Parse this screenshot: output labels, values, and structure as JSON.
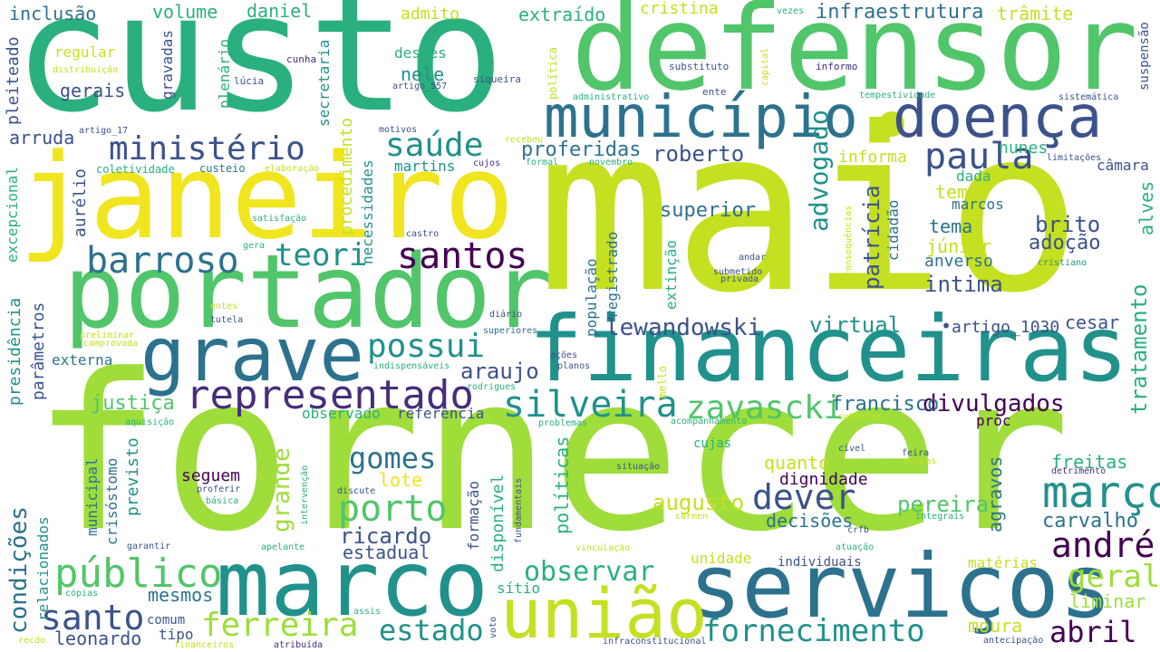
{
  "palette": {
    "light_green": "#9edd3a",
    "lime": "#c5e021",
    "yellow": "#f0e51f",
    "green": "#51c56a",
    "teal_green": "#2ab07f",
    "teal": "#21918c",
    "steel_blue": "#2c728e",
    "indigo": "#3b528b",
    "violet": "#472d7b",
    "dark_purple": "#440154"
  },
  "words": [
    {
      "text": "fornecer",
      "color": "#9edd3a"
    },
    {
      "text": "maio",
      "color": "#c5e021"
    },
    {
      "text": "custo",
      "color": "#2ab07f"
    },
    {
      "text": "defensor",
      "color": "#51c56a"
    },
    {
      "text": "janeiro",
      "color": "#f0e51f"
    },
    {
      "text": "portador",
      "color": "#51c56a"
    },
    {
      "text": "financeiras",
      "color": "#21918c"
    },
    {
      "text": "marco",
      "color": "#21918c"
    },
    {
      "text": "serviços",
      "color": "#2c728e"
    },
    {
      "text": "município",
      "color": "#2c728e"
    },
    {
      "text": "doença",
      "color": "#3b528b"
    },
    {
      "text": "grave",
      "color": "#2c728e"
    },
    {
      "text": "união",
      "color": "#c5e021"
    },
    {
      "text": "representado",
      "color": "#472d7b"
    },
    {
      "text": "público",
      "color": "#51c56a"
    },
    {
      "text": "ministério",
      "color": "#3b528b"
    },
    {
      "text": "barroso",
      "color": "#2c728e"
    },
    {
      "text": "saúde",
      "color": "#21918c"
    },
    {
      "text": "paula",
      "color": "#3b528b"
    },
    {
      "text": "março",
      "color": "#21918c"
    },
    {
      "text": "fornecimento",
      "color": "#21918c"
    },
    {
      "text": "ferreira",
      "color": "#9edd3a"
    },
    {
      "text": "silveira",
      "color": "#21918c"
    },
    {
      "text": "zavascki",
      "color": "#51c56a"
    },
    {
      "text": "santos",
      "color": "#440154"
    },
    {
      "text": "possui",
      "color": "#21918c"
    },
    {
      "text": "dever",
      "color": "#3b528b"
    },
    {
      "text": "andré",
      "color": "#440154"
    },
    {
      "text": "santo",
      "color": "#3b528b"
    },
    {
      "text": "porto",
      "color": "#51c56a"
    },
    {
      "text": "teori",
      "color": "#21918c"
    },
    {
      "text": "estado",
      "color": "#21918c"
    },
    {
      "text": "abril",
      "color": "#440154"
    },
    {
      "text": "observar",
      "color": "#2ab07f"
    },
    {
      "text": "geral",
      "color": "#9edd3a"
    },
    {
      "text": "gomes",
      "color": "#2c728e"
    },
    {
      "text": "divulgados",
      "color": "#440154"
    },
    {
      "text": "lewandowski",
      "color": "#3b528b"
    },
    {
      "text": "justiça",
      "color": "#51c56a"
    },
    {
      "text": "francisco",
      "color": "#2c728e"
    },
    {
      "text": "araujo",
      "color": "#3b528b"
    },
    {
      "text": "roberto",
      "color": "#3b528b"
    },
    {
      "text": "proferidas",
      "color": "#2c728e"
    },
    {
      "text": "infraestrutura",
      "color": "#2c728e"
    },
    {
      "text": "augusto",
      "color": "#c5e021"
    },
    {
      "text": "ricardo",
      "color": "#3b528b"
    },
    {
      "text": "pereira",
      "color": "#51c56a"
    },
    {
      "text": "carvalho",
      "color": "#2c728e"
    },
    {
      "text": "intima",
      "color": "#3b528b"
    },
    {
      "text": "superior",
      "color": "#2c728e"
    },
    {
      "text": "virtual",
      "color": "#21918c"
    },
    {
      "text": "adoção",
      "color": "#3b528b"
    },
    {
      "text": "brito",
      "color": "#3b528b"
    },
    {
      "text": "leonardo",
      "color": "#3b528b"
    },
    {
      "text": "moura",
      "color": "#c5e021"
    },
    {
      "text": "liminar",
      "color": "#9edd3a"
    },
    {
      "text": "freitas",
      "color": "#2ab07f"
    },
    {
      "text": "decisões",
      "color": "#2c728e"
    },
    {
      "text": "dignidade",
      "color": "#440154"
    },
    {
      "text": "quanto",
      "color": "#c5e021"
    },
    {
      "text": "mesmos",
      "color": "#2c728e"
    },
    {
      "text": "estadual",
      "color": "#3b528b"
    },
    {
      "text": "seguem",
      "color": "#440154"
    },
    {
      "text": "lote",
      "color": "#f0e51f"
    },
    {
      "text": "inclusão",
      "color": "#2c728e"
    },
    {
      "text": "volume",
      "color": "#2ab07f"
    },
    {
      "text": "daniel",
      "color": "#2ab07f"
    },
    {
      "text": "admito",
      "color": "#c5e021"
    },
    {
      "text": "extraído",
      "color": "#2ab07f"
    },
    {
      "text": "cristina",
      "color": "#c5e021"
    },
    {
      "text": "trâmite",
      "color": "#c5e021"
    },
    {
      "text": "gerais",
      "color": "#3b528b"
    },
    {
      "text": "nele",
      "color": "#21918c"
    },
    {
      "text": "destes",
      "color": "#2ab07f"
    },
    {
      "text": "regular",
      "color": "#c5e021"
    },
    {
      "text": "arruda",
      "color": "#3b528b"
    },
    {
      "text": "martins",
      "color": "#21918c"
    },
    {
      "text": "temas",
      "color": "#c5e021"
    },
    {
      "text": "marcos",
      "color": "#2c728e"
    },
    {
      "text": "tema",
      "color": "#2c728e"
    },
    {
      "text": "júnior",
      "color": "#c5e021"
    },
    {
      "text": "anverso",
      "color": "#2c728e"
    },
    {
      "text": "nunes",
      "color": "#2ab07f"
    },
    {
      "text": "dada",
      "color": "#2ab07f"
    },
    {
      "text": "câmara",
      "color": "#3b528b"
    },
    {
      "text": "informa",
      "color": "#c5e021"
    },
    {
      "text": "cesar",
      "color": "#3b528b"
    },
    {
      "text": "externa",
      "color": "#2c728e"
    },
    {
      "text": "referência",
      "color": "#3b528b"
    },
    {
      "text": "observado",
      "color": "#2ab07f"
    },
    {
      "text": "proc",
      "color": "#440154"
    },
    {
      "text": "cujas",
      "color": "#2ab07f"
    },
    {
      "text": "unidade",
      "color": "#c5e021"
    },
    {
      "text": "individuais",
      "color": "#3b528b"
    },
    {
      "text": "matérias",
      "color": "#c5e021"
    },
    {
      "text": "comum",
      "color": "#3b528b"
    },
    {
      "text": "tipo",
      "color": "#3b528b"
    },
    {
      "text": "sítio",
      "color": "#2ab07f"
    },
    {
      "text": "artigo_1030",
      "color": "#3b528b"
    },
    {
      "text": "cunha",
      "color": "#472d7b"
    },
    {
      "text": "lúcia",
      "color": "#3b528b"
    },
    {
      "text": "artigo_557",
      "color": "#3b528b"
    },
    {
      "text": "siqueira",
      "color": "#3b528b"
    },
    {
      "text": "substituto",
      "color": "#3b528b"
    },
    {
      "text": "informo",
      "color": "#472d7b"
    },
    {
      "text": "vezes",
      "color": "#2ab07f"
    },
    {
      "text": "ente",
      "color": "#3b528b"
    },
    {
      "text": "administrativo",
      "color": "#2ab07f"
    },
    {
      "text": "tempestividade",
      "color": "#2ab07f"
    },
    {
      "text": "sistemática",
      "color": "#3b528b"
    },
    {
      "text": "motivos",
      "color": "#3b528b"
    },
    {
      "text": "recebeu",
      "color": "#c5e021"
    },
    {
      "text": "artigo_17",
      "color": "#3b528b"
    },
    {
      "text": "distribuição",
      "color": "#c5e021"
    },
    {
      "text": "coletividade",
      "color": "#2ab07f"
    },
    {
      "text": "custeio",
      "color": "#2c728e"
    },
    {
      "text": "elaboração",
      "color": "#c5e021"
    },
    {
      "text": "cujos",
      "color": "#472d7b"
    },
    {
      "text": "formal",
      "color": "#2ab07f"
    },
    {
      "text": "novembro",
      "color": "#2ab07f"
    },
    {
      "text": "limitações",
      "color": "#3b528b"
    },
    {
      "text": "satisfação",
      "color": "#2ab07f"
    },
    {
      "text": "castro",
      "color": "#3b528b"
    },
    {
      "text": "gera",
      "color": "#2ab07f"
    },
    {
      "text": "andar",
      "color": "#3b528b"
    },
    {
      "text": "submetido",
      "color": "#3b528b"
    },
    {
      "text": "privada",
      "color": "#3b528b"
    },
    {
      "text": "cristiano",
      "color": "#21918c"
    },
    {
      "text": "entes",
      "color": "#c5e021"
    },
    {
      "text": "tutela",
      "color": "#3b528b"
    },
    {
      "text": "diário",
      "color": "#3b528b"
    },
    {
      "text": "superiores",
      "color": "#2c728e"
    },
    {
      "text": "preliminar",
      "color": "#c5e021"
    },
    {
      "text": "comprovada",
      "color": "#c5e021"
    },
    {
      "text": "ações",
      "color": "#3b528b"
    },
    {
      "text": "planos",
      "color": "#3b528b"
    },
    {
      "text": "indispensáveis",
      "color": "#2ab07f"
    },
    {
      "text": "rodrigues",
      "color": "#2ab07f"
    },
    {
      "text": "aquisição",
      "color": "#2ab07f"
    },
    {
      "text": "problemas",
      "color": "#2ab07f"
    },
    {
      "text": "acompanhamento",
      "color": "#2ab07f"
    },
    {
      "text": "submeter",
      "color": "#c5e021"
    },
    {
      "text": "civel",
      "color": "#3b528b"
    },
    {
      "text": "feira",
      "color": "#3b528b"
    },
    {
      "text": "outras",
      "color": "#c5e021"
    },
    {
      "text": "situação",
      "color": "#3b528b"
    },
    {
      "text": "detrimento",
      "color": "#472d7b"
    },
    {
      "text": "proferir",
      "color": "#3b528b"
    },
    {
      "text": "básica",
      "color": "#2ab07f"
    },
    {
      "text": "discute",
      "color": "#3b528b"
    },
    {
      "text": "integrais",
      "color": "#2ab07f"
    },
    {
      "text": "carmen",
      "color": "#c5e021"
    },
    {
      "text": "crfb",
      "color": "#3b528b"
    },
    {
      "text": "garantir",
      "color": "#3b528b"
    },
    {
      "text": "apelante",
      "color": "#2ab07f"
    },
    {
      "text": "vinculação",
      "color": "#c5e021"
    },
    {
      "text": "atuação",
      "color": "#2ab07f"
    },
    {
      "text": "cópias",
      "color": "#2ab07f"
    },
    {
      "text": "assis",
      "color": "#2ab07f"
    },
    {
      "text": "voto",
      "color": "#3b528b"
    },
    {
      "text": "recdo",
      "color": "#c5e021"
    },
    {
      "text": "financeiros",
      "color": "#c5e021"
    },
    {
      "text": "atribuída",
      "color": "#472d7b"
    },
    {
      "text": "infraconstitucional",
      "color": "#3b528b"
    },
    {
      "text": "antecipação",
      "color": "#3b528b"
    },
    {
      "text": "pleiteado",
      "color": "#3b528b"
    },
    {
      "text": "excepcional",
      "color": "#2ab07f"
    },
    {
      "text": "presidência",
      "color": "#21918c"
    },
    {
      "text": "parâmetros",
      "color": "#3b528b"
    },
    {
      "text": "condições",
      "color": "#2c728e"
    },
    {
      "text": "relacionados",
      "color": "#21918c"
    },
    {
      "text": "gravadas",
      "color": "#3b528b"
    },
    {
      "text": "plenário",
      "color": "#2ab07f"
    },
    {
      "text": "secretaria",
      "color": "#21918c"
    },
    {
      "text": "procedimento",
      "color": "#c5e021"
    },
    {
      "text": "necessidades",
      "color": "#21918c"
    },
    {
      "text": "aurélio",
      "color": "#3b528b"
    },
    {
      "text": "grande",
      "color": "#9edd3a"
    },
    {
      "text": "previsto",
      "color": "#21918c"
    },
    {
      "text": "crisóstomo",
      "color": "#2c728e"
    },
    {
      "text": "municipal",
      "color": "#2c728e"
    },
    {
      "text": "advogado",
      "color": "#21918c"
    },
    {
      "text": "patrícia",
      "color": "#3b528b"
    },
    {
      "text": "cidadão",
      "color": "#2c728e"
    },
    {
      "text": "tratamento",
      "color": "#2ab07f"
    },
    {
      "text": "alves",
      "color": "#2ab07f"
    },
    {
      "text": "agravos",
      "color": "#2c728e"
    },
    {
      "text": "população",
      "color": "#2c728e"
    },
    {
      "text": "registrado",
      "color": "#2c728e"
    },
    {
      "text": "extinção",
      "color": "#2ab07f"
    },
    {
      "text": "formação",
      "color": "#3b528b"
    },
    {
      "text": "disponível",
      "color": "#2ab07f"
    },
    {
      "text": "políticas",
      "color": "#2ab07f"
    },
    {
      "text": "suspensão",
      "color": "#3b528b"
    },
    {
      "text": "política",
      "color": "#c5e021"
    },
    {
      "text": "capital",
      "color": "#c5e021"
    },
    {
      "text": "consequências",
      "color": "#c5e021"
    },
    {
      "text": "mello",
      "color": "#c5e021"
    },
    {
      "text": "intervenção",
      "color": "#2ab07f"
    },
    {
      "text": "fundamentais",
      "color": "#3b528b"
    }
  ]
}
